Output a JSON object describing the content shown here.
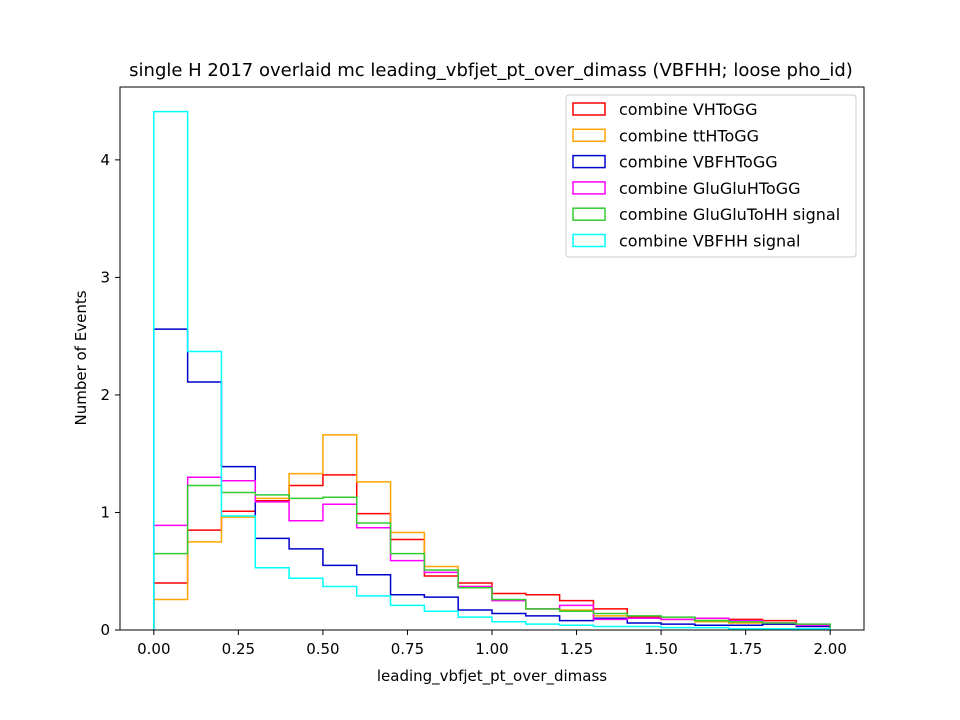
{
  "chart_data": {
    "type": "step-histogram",
    "title": "single H 2017 overlaid mc leading_vbfjet_pt_over_dimass (VBFHH; loose pho_id)",
    "xlabel": "leading_vbfjet_pt_over_dimass",
    "ylabel": "Number of Events",
    "xlim": [
      -0.1,
      2.1
    ],
    "ylim": [
      0,
      4.62
    ],
    "xticks": [
      0.0,
      0.25,
      0.5,
      0.75,
      1.0,
      1.25,
      1.5,
      1.75,
      2.0
    ],
    "xtick_labels": [
      "0.00",
      "0.25",
      "0.50",
      "0.75",
      "1.00",
      "1.25",
      "1.50",
      "1.75",
      "2.00"
    ],
    "yticks": [
      0,
      1,
      2,
      3,
      4
    ],
    "ytick_labels": [
      "0",
      "1",
      "2",
      "3",
      "4"
    ],
    "legend_position": "upper-right",
    "bin_edges": [
      0.0,
      0.1,
      0.2,
      0.3,
      0.4,
      0.5,
      0.6,
      0.7,
      0.8,
      0.9,
      1.0,
      1.1,
      1.2,
      1.3,
      1.4,
      1.5,
      1.6,
      1.7,
      1.8,
      1.9,
      2.0
    ],
    "series": [
      {
        "name": "combine VHToGG",
        "color": "#ff0000",
        "values": [
          0.4,
          0.85,
          1.01,
          1.1,
          1.23,
          1.32,
          0.99,
          0.77,
          0.46,
          0.4,
          0.31,
          0.3,
          0.25,
          0.18,
          0.11,
          0.09,
          0.08,
          0.09,
          0.08,
          0.04
        ]
      },
      {
        "name": "combine ttHToGG",
        "color": "#ffa500",
        "values": [
          0.26,
          0.75,
          0.96,
          1.12,
          1.33,
          1.66,
          1.26,
          0.83,
          0.54,
          0.37,
          0.25,
          0.18,
          0.17,
          0.12,
          0.1,
          0.09,
          0.07,
          0.06,
          0.05,
          0.04
        ]
      },
      {
        "name": "combine VBFHToGG",
        "color": "#0000cd",
        "values": [
          2.56,
          2.11,
          1.39,
          0.78,
          0.69,
          0.55,
          0.47,
          0.3,
          0.28,
          0.17,
          0.14,
          0.12,
          0.08,
          0.1,
          0.06,
          0.05,
          0.04,
          0.04,
          0.05,
          0.03
        ]
      },
      {
        "name": "combine GluGluHToGG",
        "color": "#ff00ff",
        "values": [
          0.89,
          1.3,
          1.27,
          1.09,
          0.93,
          1.07,
          0.87,
          0.59,
          0.49,
          0.37,
          0.25,
          0.18,
          0.21,
          0.09,
          0.1,
          0.09,
          0.1,
          0.08,
          0.06,
          0.04
        ]
      },
      {
        "name": "combine GluGluToHH signal",
        "color": "#33cc33",
        "values": [
          0.65,
          1.23,
          1.17,
          1.15,
          1.12,
          1.13,
          0.91,
          0.65,
          0.51,
          0.36,
          0.26,
          0.18,
          0.16,
          0.14,
          0.12,
          0.11,
          0.08,
          0.07,
          0.06,
          0.05
        ]
      },
      {
        "name": "combine VBFHH signal",
        "color": "#00ffff",
        "values": [
          4.41,
          2.37,
          0.97,
          0.53,
          0.44,
          0.37,
          0.29,
          0.21,
          0.16,
          0.11,
          0.07,
          0.05,
          0.04,
          0.03,
          0.03,
          0.02,
          0.02,
          0.01,
          0.01,
          0.01
        ]
      }
    ]
  }
}
